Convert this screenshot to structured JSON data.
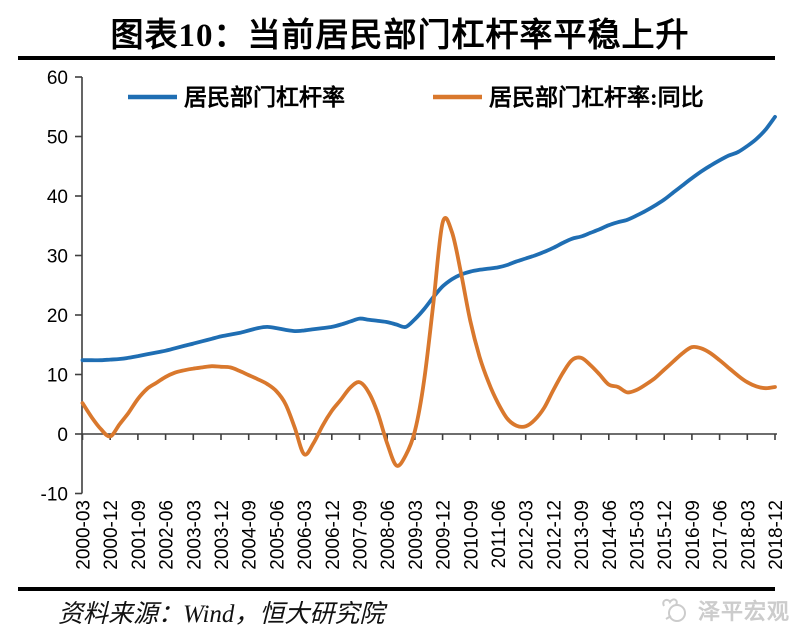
{
  "title": "图表10：当前居民部门杠杆率平稳上升",
  "source_note": "资料来源：Wind，恒大研究院",
  "watermark": "泽平宏观",
  "colors": {
    "series_leverage": "#1f6eb3",
    "series_yoy": "#d9782d",
    "axis": "#3f3f3f",
    "text": "#000000",
    "rule": "#000000",
    "watermark": "#cccccc"
  },
  "chart_data": {
    "type": "line",
    "title": "图表10：当前居民部门杠杆率平稳上升",
    "x_start": "2000-03",
    "x_frequency": "quarterly",
    "x_quarters_per_label": 3,
    "x_tick_labels": [
      "2000-03",
      "2000-12",
      "2001-09",
      "2002-06",
      "2003-03",
      "2003-12",
      "2004-09",
      "2005-06",
      "2006-03",
      "2006-12",
      "2007-09",
      "2008-06",
      "2009-03",
      "2009-12",
      "2010-09",
      "2011-06",
      "2012-03",
      "2012-12",
      "2013-09",
      "2014-06",
      "2015-03",
      "2015-12",
      "2016-09",
      "2017-06",
      "2018-03",
      "2018-12"
    ],
    "y_ticks": [
      60,
      50,
      40,
      30,
      20,
      10,
      0,
      -10
    ],
    "ylim": [
      -10,
      60
    ],
    "grid": false,
    "legend_position": "top",
    "series": [
      {
        "name": "居民部门杠杆率",
        "color": "#1f6eb3",
        "values": [
          12.4,
          12.4,
          12.4,
          12.5,
          12.6,
          12.8,
          13.1,
          13.4,
          13.7,
          14.0,
          14.4,
          14.8,
          15.2,
          15.6,
          16.0,
          16.4,
          16.7,
          17.0,
          17.4,
          17.8,
          18.0,
          17.8,
          17.5,
          17.3,
          17.4,
          17.6,
          17.8,
          18.0,
          18.4,
          18.9,
          19.4,
          19.2,
          19.0,
          18.8,
          18.4,
          18.0,
          19.3,
          21.0,
          23.0,
          24.8,
          26.0,
          26.8,
          27.3,
          27.6,
          27.8,
          28.0,
          28.4,
          29.0,
          29.5,
          30.0,
          30.6,
          31.3,
          32.1,
          32.8,
          33.2,
          33.8,
          34.4,
          35.1,
          35.6,
          36.0,
          36.7,
          37.5,
          38.4,
          39.4,
          40.6,
          41.8,
          43.0,
          44.1,
          45.1,
          46.0,
          46.8,
          47.4,
          48.4,
          49.6,
          51.2,
          53.3
        ]
      },
      {
        "name": "居民部门杠杆率:同比",
        "color": "#d9782d",
        "values": [
          5.2,
          2.8,
          0.8,
          -0.4,
          1.6,
          3.6,
          5.9,
          7.6,
          8.6,
          9.6,
          10.3,
          10.7,
          11.0,
          11.2,
          11.4,
          11.3,
          11.2,
          10.6,
          9.9,
          9.2,
          8.4,
          7.2,
          5.0,
          1.0,
          -3.4,
          -1.6,
          1.4,
          3.9,
          5.8,
          7.8,
          8.7,
          7.0,
          3.4,
          -1.6,
          -5.3,
          -3.6,
          0.5,
          9.0,
          22.0,
          35.5,
          34.0,
          27.0,
          19.0,
          13.0,
          8.6,
          5.2,
          2.6,
          1.4,
          1.3,
          2.4,
          4.4,
          7.4,
          10.2,
          12.4,
          12.8,
          11.6,
          10.0,
          8.3,
          7.9,
          7.0,
          7.4,
          8.3,
          9.4,
          10.8,
          12.2,
          13.6,
          14.6,
          14.4,
          13.6,
          12.4,
          11.1,
          9.8,
          8.7,
          8.0,
          7.7,
          7.9
        ]
      }
    ]
  }
}
